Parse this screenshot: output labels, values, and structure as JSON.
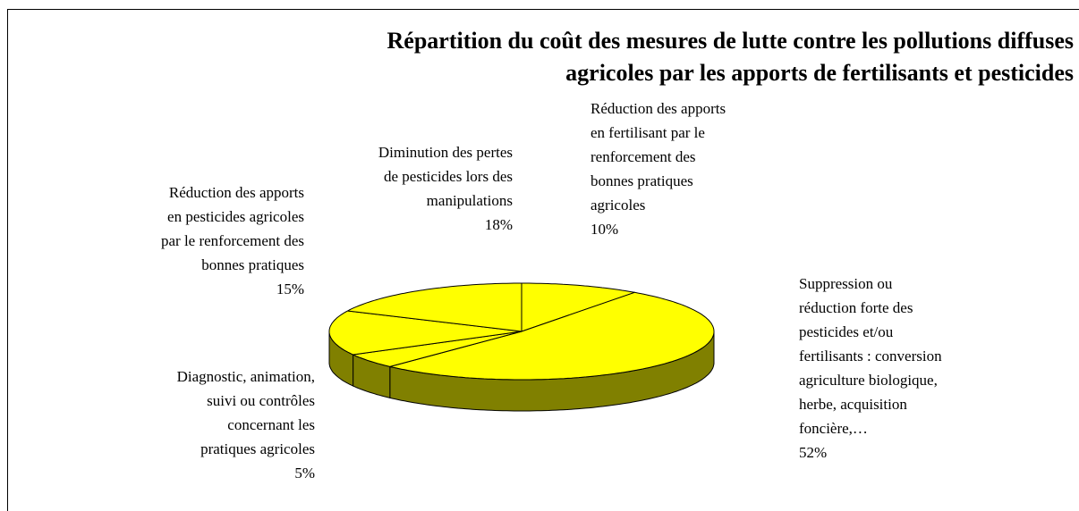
{
  "chart_data": {
    "type": "pie3d",
    "title": "Répartition du coût des mesures de lutte contre les pollutions diffuses\nagricoles par les apports de fertilisants et pesticides",
    "categories": [
      "Réduction des apports\nen fertilisant par le\nrenforcement des\nbonnes pratiques\nagricoles",
      "Suppression ou\nréduction forte des\npesticides et/ou\nfertilisants : conversion\nagriculture biologique,\nherbe, acquisition\nfoncière,…",
      "Diagnostic, animation,\nsuivi ou contrôles\nconcernant les\npratiques agricoles",
      "Réduction des apports\nen pesticides agricoles\npar le renforcement des\nbonnes pratiques",
      "Diminution des pertes\nde pesticides lors des\nmanipulations"
    ],
    "values": [
      10,
      52,
      5,
      15,
      18
    ],
    "value_labels": [
      "10%",
      "52%",
      "5%",
      "15%",
      "18%"
    ],
    "color": "#ffff00",
    "side_color": "#808000"
  }
}
